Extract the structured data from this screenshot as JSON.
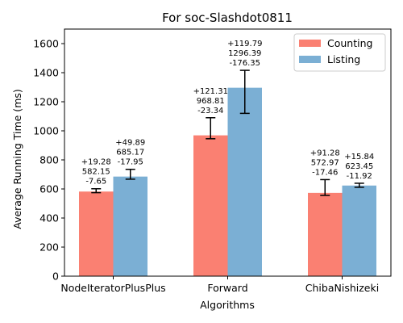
{
  "chart_data": {
    "type": "bar",
    "title": "For soc-Slashdot0811",
    "xlabel": "Algorithms",
    "ylabel": "Average Running Time (ms)",
    "ylim": [
      0,
      1700
    ],
    "yticks": [
      0,
      200,
      400,
      600,
      800,
      1000,
      1200,
      1400,
      1600
    ],
    "categories": [
      "NodeIteratorPlusPlus",
      "Forward",
      "ChibaNishizeki"
    ],
    "legend_position": "top-right",
    "grid": false,
    "series": [
      {
        "name": "Counting",
        "color": "#fa8072",
        "values": [
          582.15,
          968.81,
          572.97
        ],
        "err_plus": [
          19.28,
          121.31,
          91.28
        ],
        "err_minus": [
          7.65,
          23.34,
          17.46
        ],
        "annotations": [
          [
            "+19.28",
            "582.15",
            "-7.65"
          ],
          [
            "+121.31",
            "968.81",
            "-23.34"
          ],
          [
            "+91.28",
            "572.97",
            "-17.46"
          ]
        ]
      },
      {
        "name": "Listing",
        "color": "#7bafd4",
        "values": [
          685.17,
          1296.39,
          623.45
        ],
        "err_plus": [
          49.89,
          119.79,
          15.84
        ],
        "err_minus": [
          17.95,
          176.35,
          11.92
        ],
        "annotations": [
          [
            "+49.89",
            "685.17",
            "-17.95"
          ],
          [
            "+119.79",
            "1296.39",
            "-176.35"
          ],
          [
            "+15.84",
            "623.45",
            "-11.92"
          ]
        ]
      }
    ]
  }
}
